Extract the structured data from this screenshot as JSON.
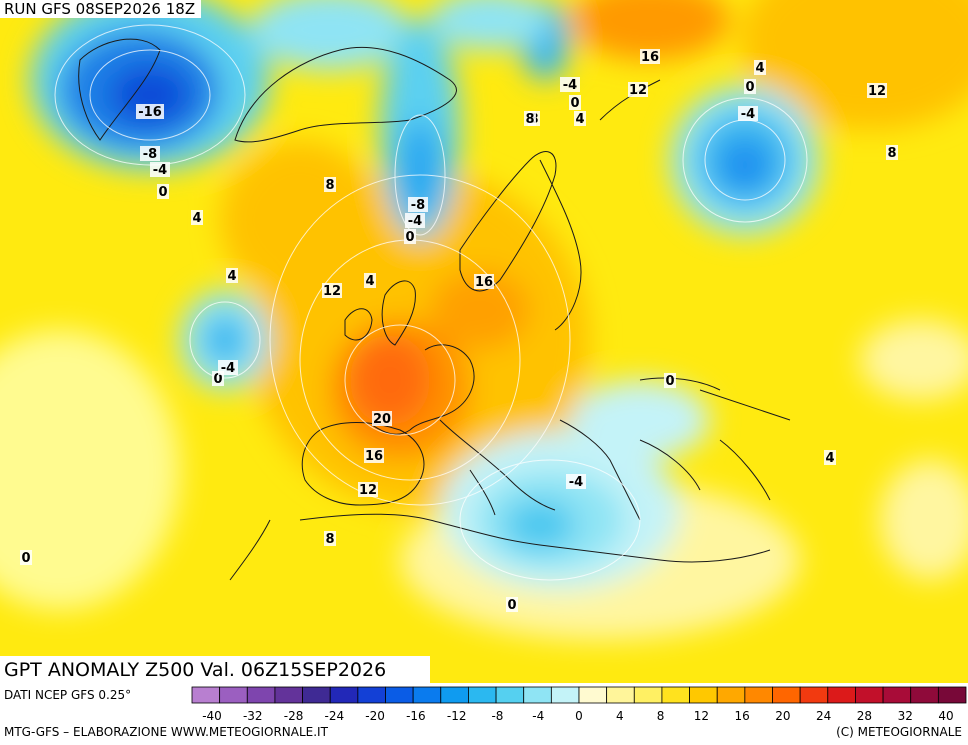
{
  "header": {
    "run_title": "RUN GFS 08SEP2026 18Z"
  },
  "map": {
    "title": "GPT ANOMALY Z500 Val. 06Z15SEP2026",
    "contour_labels": [
      {
        "text": "-16"
      },
      {
        "text": "-8"
      },
      {
        "text": "-4"
      },
      {
        "text": "0"
      },
      {
        "text": "4"
      },
      {
        "text": "8"
      },
      {
        "text": "-8"
      },
      {
        "text": "-4"
      },
      {
        "text": "0"
      },
      {
        "text": "8"
      },
      {
        "text": "8"
      },
      {
        "text": "-4"
      },
      {
        "text": "0"
      },
      {
        "text": "4"
      },
      {
        "text": "16"
      },
      {
        "text": "12"
      },
      {
        "text": "4"
      },
      {
        "text": "0"
      },
      {
        "text": "-4"
      },
      {
        "text": "12"
      },
      {
        "text": "8"
      },
      {
        "text": "4"
      },
      {
        "text": "12"
      },
      {
        "text": "16"
      },
      {
        "text": "4"
      },
      {
        "text": "0"
      },
      {
        "text": "-4"
      },
      {
        "text": "20"
      },
      {
        "text": "16"
      },
      {
        "text": "12"
      },
      {
        "text": "8"
      },
      {
        "text": "0"
      },
      {
        "text": "0"
      },
      {
        "text": "-4"
      },
      {
        "text": "4"
      },
      {
        "text": "0"
      }
    ]
  },
  "legend": {
    "source": "DATI NCEP GFS 0.25°",
    "colors": [
      "#b87fd0",
      "#9b5fc0",
      "#7e45ae",
      "#63339a",
      "#3f2a94",
      "#2228b8",
      "#1340d6",
      "#0a5ce6",
      "#0a7bee",
      "#0f9bf0",
      "#2bb8f0",
      "#55d0f0",
      "#8fe4f4",
      "#c4f3f8",
      "#fffad0",
      "#fff59a",
      "#fff063",
      "#ffe21e",
      "#ffc800",
      "#ffa800",
      "#ff8800",
      "#ff6600",
      "#f23a10",
      "#dc1a1a",
      "#c2102a",
      "#a80c38",
      "#8f0a3a",
      "#780838"
    ],
    "ticks": [
      "-40",
      "-32",
      "-28",
      "-24",
      "-20",
      "-16",
      "-12",
      "-8",
      "-4",
      "0",
      "4",
      "8",
      "12",
      "16",
      "20",
      "24",
      "28",
      "32",
      "40"
    ]
  },
  "footer": {
    "credit_left": "MTG-GFS – ELABORAZIONE WWW.METEOGIORNALE.IT",
    "credit_right": "(C) METEOGIORNALE"
  }
}
